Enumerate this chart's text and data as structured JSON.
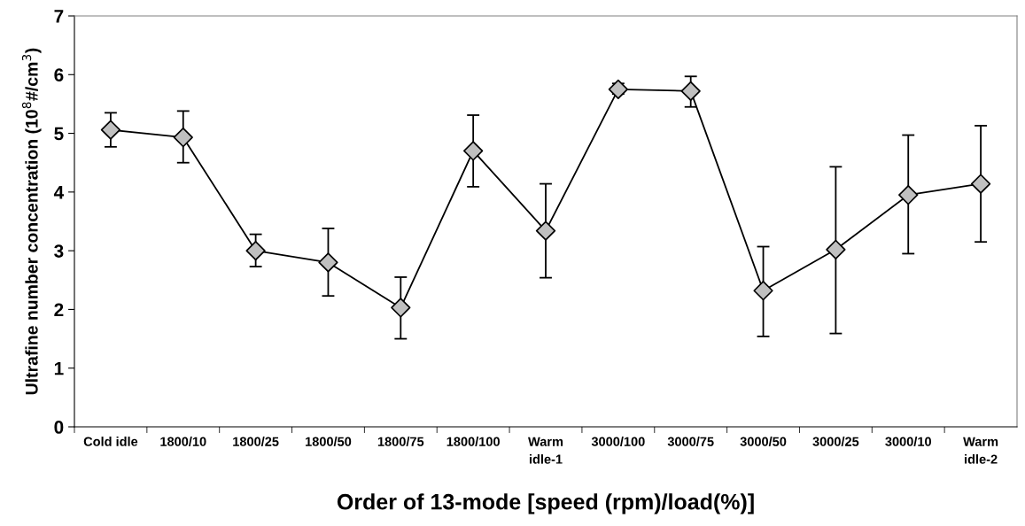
{
  "chart_data": {
    "type": "line",
    "xlabel": "Order of 13-mode [speed (rpm)/load(%)]",
    "ylabel": "Ultrafine number concentration (10$^{8}$#/cm$^{3}$)",
    "categories": [
      "Cold idle",
      "1800/10",
      "1800/25",
      "1800/50",
      "1800/75",
      "1800/100",
      "Warm\nidle-1",
      "3000/100",
      "3000/75",
      "3000/50",
      "3000/25",
      "3000/10",
      "Warm\nidle-2"
    ],
    "series": [
      {
        "color": "#c0c0c0",
        "values": [
          5.06,
          4.93,
          3.0,
          2.8,
          2.03,
          4.7,
          3.34,
          5.75,
          5.72,
          2.32,
          3.02,
          3.95,
          4.14
        ],
        "errors": [
          [
            4.77,
            5.35
          ],
          [
            4.5,
            5.38
          ],
          [
            2.73,
            3.28
          ],
          [
            2.23,
            3.38
          ],
          [
            1.5,
            2.55
          ],
          [
            4.09,
            5.31
          ],
          [
            2.54,
            4.14
          ],
          [
            5.67,
            5.85
          ],
          [
            5.45,
            5.97
          ],
          [
            1.54,
            3.07
          ],
          [
            1.59,
            4.43
          ],
          [
            2.95,
            4.97
          ],
          [
            3.15,
            5.13
          ]
        ]
      }
    ],
    "ylim": [
      0,
      7
    ],
    "yticks": [
      0,
      1,
      2,
      3,
      4,
      5,
      6,
      7
    ],
    "marker": "diamond",
    "line_style": "solid",
    "grid": false,
    "legend": false
  }
}
